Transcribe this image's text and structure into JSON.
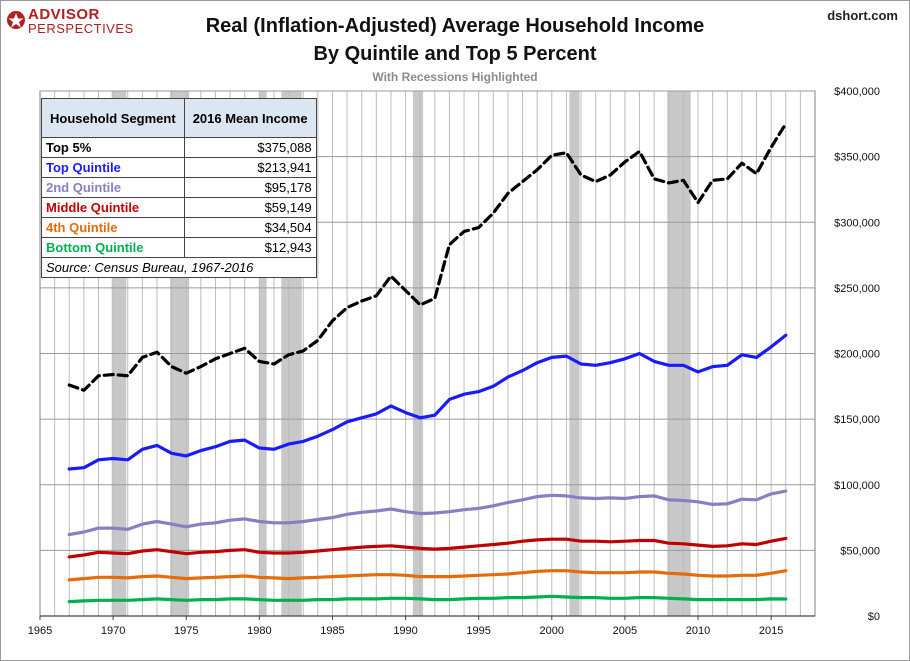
{
  "header": {
    "logo_line1": "ADVISOR",
    "logo_line2": "PERSPECTIVES",
    "source_site": "dshort.com",
    "title_line1": "Real (Inflation-Adjusted) Average Household Income",
    "title_line2": "By Quintile and Top 5 Percent",
    "subtitle": "With Recessions Highlighted"
  },
  "legend_table": {
    "col1_header": "Household Segment",
    "col2_header": "2016 Mean Income",
    "rows": [
      {
        "segment": "Top 5%",
        "income": "$375,088",
        "color": "#000000"
      },
      {
        "segment": "Top Quintile",
        "income": "$213,941",
        "color": "#1a1aff"
      },
      {
        "segment": "2nd Quintile",
        "income": "$95,178",
        "color": "#8e7cc3"
      },
      {
        "segment": "Middle Quintile",
        "income": "$59,149",
        "color": "#c00000"
      },
      {
        "segment": "4th Quintile",
        "income": "$34,504",
        "color": "#e46c0a"
      },
      {
        "segment": "Bottom Quintile",
        "income": "$12,943",
        "color": "#00b050"
      }
    ],
    "source": "Source: Census Bureau, 1967-2016"
  },
  "chart_data": {
    "type": "line",
    "title": "Real (Inflation-Adjusted) Average Household Income By Quintile and Top 5 Percent",
    "subtitle": "With Recessions Highlighted",
    "xlim": [
      1965,
      2018
    ],
    "ylim": [
      0,
      400000
    ],
    "x_ticks": [
      1965,
      1970,
      1975,
      1980,
      1985,
      1990,
      1995,
      2000,
      2005,
      2010,
      2015
    ],
    "y_ticks": [
      0,
      50000,
      100000,
      150000,
      200000,
      250000,
      300000,
      350000,
      400000
    ],
    "y_tick_labels": [
      "$0",
      "$50,000",
      "$100,000",
      "$150,000",
      "$200,000",
      "$250,000",
      "$300,000",
      "$350,000",
      "$400,000"
    ],
    "y_axis_side": "right",
    "grid": true,
    "recessions": [
      [
        1969.9,
        1970.9
      ],
      [
        1973.9,
        1975.2
      ],
      [
        1980.0,
        1980.5
      ],
      [
        1981.5,
        1982.9
      ],
      [
        1990.5,
        1991.2
      ],
      [
        2001.2,
        2001.9
      ],
      [
        2007.9,
        2009.5
      ]
    ],
    "x": [
      1967,
      1968,
      1969,
      1970,
      1971,
      1972,
      1973,
      1974,
      1975,
      1976,
      1977,
      1978,
      1979,
      1980,
      1981,
      1982,
      1983,
      1984,
      1985,
      1986,
      1987,
      1988,
      1989,
      1990,
      1991,
      1992,
      1993,
      1994,
      1995,
      1996,
      1997,
      1998,
      1999,
      2000,
      2001,
      2002,
      2003,
      2004,
      2005,
      2006,
      2007,
      2008,
      2009,
      2010,
      2011,
      2012,
      2013,
      2014,
      2015,
      2016
    ],
    "series": [
      {
        "name": "Top 5%",
        "color": "#000000",
        "dashed": true,
        "values": [
          176000,
          172000,
          183000,
          184000,
          183000,
          197000,
          201000,
          190000,
          185000,
          190000,
          196000,
          200000,
          204000,
          194000,
          192000,
          199000,
          202000,
          210000,
          225000,
          235000,
          240000,
          244000,
          259000,
          248000,
          237000,
          242000,
          283000,
          293000,
          296000,
          307000,
          322000,
          331000,
          340000,
          351000,
          353000,
          336000,
          331000,
          336000,
          346000,
          354000,
          333000,
          330000,
          332000,
          315000,
          332000,
          333000,
          345000,
          337000,
          357000,
          375088
        ]
      },
      {
        "name": "Top Quintile",
        "color": "#1a1aff",
        "values": [
          112000,
          113000,
          119000,
          120000,
          119000,
          127000,
          130000,
          124000,
          122000,
          126000,
          129000,
          133000,
          134000,
          128000,
          127000,
          131000,
          133000,
          137000,
          142000,
          148000,
          151000,
          154000,
          160000,
          155000,
          151000,
          153000,
          165000,
          169000,
          171000,
          175000,
          182000,
          187000,
          193000,
          197000,
          198000,
          192000,
          191000,
          193000,
          196000,
          200000,
          194000,
          191000,
          191000,
          186000,
          190000,
          191000,
          199000,
          197000,
          205000,
          213941
        ]
      },
      {
        "name": "2nd Quintile",
        "color": "#8e7cc3",
        "values": [
          62000,
          64000,
          67000,
          67000,
          66000,
          70000,
          72000,
          70000,
          68000,
          70000,
          71000,
          73000,
          74000,
          72000,
          71000,
          71000,
          72000,
          73500,
          75000,
          77500,
          79000,
          80000,
          81500,
          79500,
          78000,
          78500,
          79500,
          81000,
          82000,
          84000,
          86500,
          88500,
          91000,
          92000,
          91500,
          90000,
          89500,
          90000,
          89500,
          91000,
          91500,
          88500,
          88000,
          87000,
          85000,
          85500,
          89000,
          88500,
          93000,
          95178
        ]
      },
      {
        "name": "Middle Quintile",
        "color": "#c00000",
        "values": [
          45000,
          46500,
          48500,
          48000,
          47500,
          49500,
          50500,
          49000,
          47500,
          48500,
          49000,
          50000,
          50500,
          48500,
          48000,
          48000,
          48500,
          49500,
          50500,
          51500,
          52500,
          53000,
          53500,
          52500,
          51500,
          51000,
          51500,
          52500,
          53500,
          54500,
          55500,
          57000,
          58000,
          58500,
          58500,
          57000,
          57000,
          56500,
          57000,
          57500,
          57500,
          55500,
          55000,
          54000,
          53000,
          53500,
          55000,
          54500,
          57000,
          59149
        ]
      },
      {
        "name": "4th Quintile",
        "color": "#e46c0a",
        "values": [
          27500,
          28500,
          29500,
          29500,
          29000,
          30000,
          30500,
          29500,
          28500,
          29000,
          29500,
          30000,
          30500,
          29500,
          29000,
          28500,
          29000,
          29500,
          30000,
          30500,
          31000,
          31500,
          31500,
          31000,
          30000,
          30000,
          30000,
          30500,
          31000,
          31500,
          32000,
          33000,
          34000,
          34500,
          34500,
          33500,
          33000,
          33000,
          33000,
          33500,
          33500,
          32500,
          32000,
          31000,
          30500,
          30500,
          31000,
          31000,
          32500,
          34504
        ]
      },
      {
        "name": "Bottom Quintile",
        "color": "#00b050",
        "values": [
          11000,
          11500,
          12000,
          12000,
          12000,
          12500,
          13000,
          12500,
          12000,
          12500,
          12500,
          13000,
          13000,
          12500,
          12000,
          12000,
          12000,
          12500,
          12500,
          13000,
          13000,
          13000,
          13500,
          13500,
          13000,
          12500,
          12500,
          13000,
          13500,
          13500,
          14000,
          14000,
          14500,
          15000,
          14500,
          14000,
          14000,
          13500,
          13500,
          14000,
          14000,
          13500,
          13000,
          12500,
          12500,
          12500,
          12500,
          12500,
          13000,
          12943
        ]
      }
    ]
  }
}
